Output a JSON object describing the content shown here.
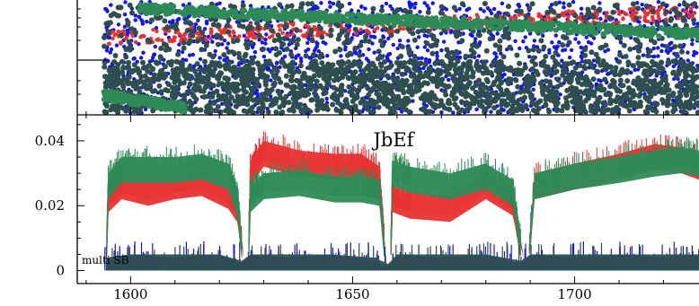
{
  "chart_data": [
    {
      "type": "scatter",
      "panel": "top",
      "xlim": [
        1588,
        1728
      ],
      "grid": false,
      "series": [
        {
          "color": "#1515e8",
          "marker": "dot",
          "band": "full-height scatter across panel"
        },
        {
          "color": "#e83232",
          "marker": "dot",
          "band": "narrow band in upper half"
        },
        {
          "color": "#2f4f4f",
          "marker": "dot",
          "band": "dense in lower half, sparse above"
        },
        {
          "color": "#2e8b57",
          "marker": "dot",
          "band": "diagonal streak top-left to right, plus lower-left streak"
        }
      ],
      "x_start": 1594,
      "colors": {
        "blue": "#1515e8",
        "red": "#e83232",
        "darkslate": "#2f4f4f",
        "seagreen": "#2e8b57"
      }
    },
    {
      "type": "line",
      "panel": "bottom",
      "title": "JbEf",
      "annotation": "multi SB",
      "xlim": [
        1588,
        1728
      ],
      "ylim": [
        -0.004,
        0.048
      ],
      "x_ticks": [
        1600,
        1650,
        1700
      ],
      "x_tick_labels": [
        "1600",
        "1650",
        "1700"
      ],
      "y_ticks": [
        0,
        0.02,
        0.04
      ],
      "y_tick_labels": [
        "0",
        "0.02",
        "0.04"
      ],
      "grid": false,
      "legend": "none",
      "series": [
        {
          "color": "#e83232",
          "x": [
            1594.5,
            1595,
            1598,
            1604,
            1610,
            1616,
            1622,
            1624,
            1625.5,
            1626.5,
            1627,
            1630,
            1638,
            1646,
            1652,
            1656,
            1657.5,
            1658.5,
            1659,
            1663,
            1672,
            1680,
            1686,
            1688.5,
            1689.5,
            1691,
            1700,
            1710,
            1718,
            1724,
            1728
          ],
          "y": [
            0.004,
            0.026,
            0.03,
            0.028,
            0.03,
            0.031,
            0.027,
            0.023,
            0.004,
            0.004,
            0.034,
            0.04,
            0.037,
            0.036,
            0.036,
            0.032,
            0.004,
            0.004,
            0.026,
            0.024,
            0.023,
            0.03,
            0.025,
            0.004,
            0.004,
            0.03,
            0.033,
            0.036,
            0.039,
            0.038,
            0.036
          ]
        },
        {
          "color": "#2e8b57",
          "x": [
            1594.5,
            1595,
            1598,
            1604,
            1610,
            1616,
            1622,
            1624,
            1625.5,
            1626.5,
            1627,
            1630,
            1638,
            1646,
            1652,
            1656,
            1657.5,
            1658.5,
            1659,
            1663,
            1672,
            1680,
            1686,
            1688.5,
            1689.5,
            1691,
            1700,
            1710,
            1718,
            1724,
            1728
          ],
          "y": [
            0.004,
            0.03,
            0.035,
            0.035,
            0.035,
            0.036,
            0.033,
            0.025,
            0.004,
            0.004,
            0.026,
            0.03,
            0.031,
            0.029,
            0.029,
            0.028,
            0.004,
            0.004,
            0.034,
            0.032,
            0.03,
            0.033,
            0.028,
            0.004,
            0.004,
            0.03,
            0.033,
            0.035,
            0.037,
            0.038,
            0.037
          ]
        },
        {
          "color": "#1515e8",
          "x": [
            1594.5,
            1600,
            1610,
            1620,
            1625,
            1627,
            1635,
            1645,
            1655,
            1658,
            1660,
            1670,
            1680,
            1688,
            1690,
            1700,
            1710,
            1720,
            1728
          ],
          "y": [
            0.003,
            0.005,
            0.004,
            0.005,
            0.002,
            0.005,
            0.004,
            0.005,
            0.003,
            0.001,
            0.005,
            0.004,
            0.005,
            0.002,
            0.005,
            0.004,
            0.005,
            0.004,
            0.005
          ]
        },
        {
          "color": "#2f4f4f",
          "x": [
            1594.5,
            1600,
            1610,
            1620,
            1625,
            1627,
            1635,
            1645,
            1655,
            1658,
            1660,
            1670,
            1680,
            1688,
            1690,
            1700,
            1710,
            1720,
            1728
          ],
          "y": [
            0.004,
            0.005,
            0.005,
            0.005,
            0.003,
            0.005,
            0.005,
            0.005,
            0.004,
            0.002,
            0.005,
            0.005,
            0.005,
            0.003,
            0.005,
            0.005,
            0.005,
            0.005,
            0.005
          ]
        }
      ]
    }
  ]
}
